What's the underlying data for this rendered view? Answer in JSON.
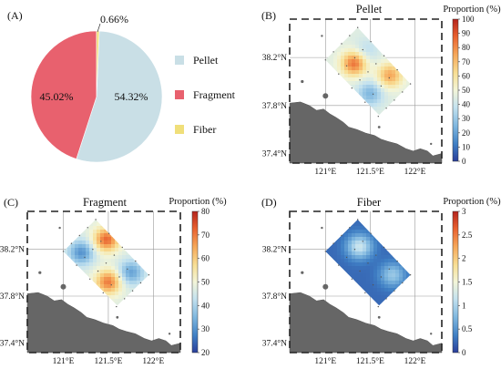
{
  "pie": {
    "panel_label": "(A)",
    "chart_data": {
      "type": "pie",
      "labels": [
        "Pellet",
        "Fragment",
        "Fiber"
      ],
      "values": [
        54.32,
        45.02,
        0.66
      ],
      "value_labels": [
        "54.32%",
        "45.02%",
        "0.66%"
      ],
      "colors": [
        "#c9dfe6",
        "#e8616e",
        "#f0df7a"
      ],
      "legend_position": "right"
    }
  },
  "maps": [
    {
      "panel_label": "(B)",
      "title": "Pellet",
      "colorbar_title": "Proportion (%)",
      "x_ticks": [
        "121°E",
        "121.5°E",
        "122°E"
      ],
      "y_ticks": [
        "38.2°N",
        "37.8°N",
        "37.4°N"
      ],
      "chart_data": {
        "type": "heatmap",
        "value_range": [
          0,
          100
        ],
        "colorbar_ticks": [
          "0",
          "10",
          "20",
          "30",
          "40",
          "50",
          "60",
          "70",
          "80",
          "90",
          "100"
        ],
        "hotspots": [
          {
            "lon": 121.32,
            "lat": 38.15,
            "value": 85
          },
          {
            "lon": 121.72,
            "lat": 38.05,
            "value": 75
          },
          {
            "lon": 121.5,
            "lat": 37.9,
            "value": 25
          },
          {
            "lon": 121.45,
            "lat": 38.25,
            "value": 35
          }
        ]
      }
    },
    {
      "panel_label": "(C)",
      "title": "Fragment",
      "colorbar_title": "Proportion (%)",
      "x_ticks": [
        "121°E",
        "121.5°E",
        "122°E"
      ],
      "y_ticks": [
        "38.2°N",
        "37.8°N",
        "37.4°N"
      ],
      "chart_data": {
        "type": "heatmap",
        "value_range": [
          20,
          80
        ],
        "colorbar_ticks": [
          "20",
          "30",
          "40",
          "50",
          "60",
          "70",
          "80"
        ],
        "hotspots": [
          {
            "lon": 121.48,
            "lat": 38.28,
            "value": 72
          },
          {
            "lon": 121.5,
            "lat": 37.92,
            "value": 70
          },
          {
            "lon": 121.2,
            "lat": 38.17,
            "value": 30
          },
          {
            "lon": 121.75,
            "lat": 38.0,
            "value": 32
          }
        ]
      }
    },
    {
      "panel_label": "(D)",
      "title": "Fiber",
      "colorbar_title": "Proportion (%)",
      "x_ticks": [
        "121°E",
        "121.5°E",
        "122°E"
      ],
      "y_ticks": [
        "38.2°N",
        "37.8°N",
        "37.4°N"
      ],
      "chart_data": {
        "type": "heatmap",
        "value_range": [
          0,
          3
        ],
        "colorbar_ticks": [
          "0",
          "0.5",
          "1",
          "1.5",
          "2",
          "2.5",
          "3"
        ],
        "hotspots": [
          {
            "lon": 121.38,
            "lat": 38.22,
            "value": 1.2
          },
          {
            "lon": 121.75,
            "lat": 37.98,
            "value": 0.9
          }
        ]
      }
    }
  ]
}
